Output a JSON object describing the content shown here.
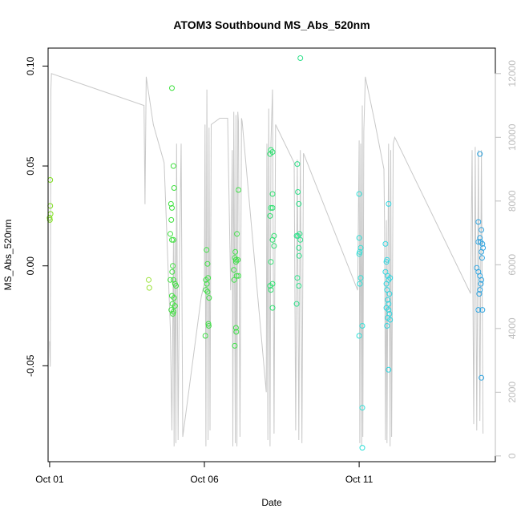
{
  "chart_data": {
    "type": "scatter",
    "title": "ATOM3 Southbound MS_Abs_520nm",
    "xlabel": "Date",
    "ylabel": "MS_Abs_520nm",
    "x_ticks": [
      {
        "day": 1,
        "label": "Oct 01"
      },
      {
        "day": 6,
        "label": "Oct 06"
      },
      {
        "day": 11,
        "label": "Oct 11"
      }
    ],
    "xlim": [
      0.95,
      15.4
    ],
    "ylim": [
      -0.098,
      0.109
    ],
    "y_ticks": [
      {
        "value": 0.1,
        "label": "0.10"
      },
      {
        "value": 0.05,
        "label": "0.05"
      },
      {
        "value": 0.0,
        "label": "0.00"
      },
      {
        "value": -0.05,
        "label": "-0.05"
      }
    ],
    "y2lim": [
      -180,
      12800
    ],
    "y2_ticks": [
      {
        "value": 0,
        "label": "0"
      },
      {
        "value": 2000,
        "label": "2000"
      },
      {
        "value": 4000,
        "label": "4000"
      },
      {
        "value": 6000,
        "label": "6000"
      },
      {
        "value": 8000,
        "label": "8000"
      },
      {
        "value": 10000,
        "label": "10000"
      },
      {
        "value": 12000,
        "label": "12000"
      }
    ],
    "grid": false,
    "legend": "none",
    "colors": {
      "secondary_line": "#c8c8c8",
      "axis": "#000000",
      "right_axis": "#bdbdbd"
    },
    "altitude_path": [
      [
        1.0,
        3600
      ],
      [
        1.02,
        2800
      ],
      [
        1.04,
        11500
      ],
      [
        1.06,
        12000
      ],
      [
        4.05,
        11000
      ],
      [
        4.08,
        7900
      ],
      [
        4.12,
        11900
      ],
      [
        4.35,
        10400
      ],
      [
        4.7,
        9200
      ],
      [
        4.9,
        4000
      ],
      [
        4.95,
        800
      ],
      [
        5.0,
        6700
      ],
      [
        5.02,
        300
      ],
      [
        5.05,
        6800
      ],
      [
        5.08,
        400
      ],
      [
        5.1,
        9800
      ],
      [
        5.15,
        500
      ],
      [
        5.2,
        6500
      ],
      [
        5.25,
        9800
      ],
      [
        5.3,
        600
      ],
      [
        5.9,
        5000
      ],
      [
        6.0,
        5400
      ],
      [
        6.02,
        10400
      ],
      [
        6.05,
        300
      ],
      [
        6.08,
        11500
      ],
      [
        6.12,
        500
      ],
      [
        6.15,
        10300
      ],
      [
        6.18,
        800
      ],
      [
        6.22,
        10400
      ],
      [
        6.5,
        10600
      ],
      [
        6.75,
        10600
      ],
      [
        6.85,
        5200
      ],
      [
        6.9,
        9600
      ],
      [
        6.92,
        300
      ],
      [
        6.95,
        10800
      ],
      [
        7.0,
        400
      ],
      [
        7.02,
        10700
      ],
      [
        7.05,
        300
      ],
      [
        7.08,
        10800
      ],
      [
        7.1,
        10500
      ],
      [
        7.15,
        600
      ],
      [
        7.2,
        10600
      ],
      [
        7.22,
        10500
      ],
      [
        8.0,
        2000
      ],
      [
        8.02,
        9800
      ],
      [
        8.05,
        500
      ],
      [
        8.08,
        10900
      ],
      [
        8.12,
        300
      ],
      [
        8.15,
        9800
      ],
      [
        8.2,
        11500
      ],
      [
        8.25,
        700
      ],
      [
        8.3,
        10400
      ],
      [
        8.9,
        9200
      ],
      [
        8.95,
        800
      ],
      [
        9.0,
        9300
      ],
      [
        9.05,
        500
      ],
      [
        9.1,
        9600
      ],
      [
        9.15,
        400
      ],
      [
        9.2,
        9500
      ],
      [
        10.95,
        5200
      ],
      [
        11.0,
        9900
      ],
      [
        11.02,
        400
      ],
      [
        11.05,
        9800
      ],
      [
        11.08,
        300
      ],
      [
        11.1,
        11000
      ],
      [
        11.12,
        600
      ],
      [
        11.15,
        10200
      ],
      [
        11.2,
        11900
      ],
      [
        11.5,
        10500
      ],
      [
        11.8,
        9000
      ],
      [
        11.82,
        7200
      ],
      [
        11.85,
        500
      ],
      [
        11.88,
        7400
      ],
      [
        11.9,
        400
      ],
      [
        11.95,
        9800
      ],
      [
        12.0,
        300
      ],
      [
        12.02,
        9600
      ],
      [
        12.05,
        600
      ],
      [
        12.1,
        9800
      ],
      [
        12.15,
        10000
      ],
      [
        14.6,
        5100
      ],
      [
        14.65,
        9600
      ],
      [
        14.7,
        1000
      ],
      [
        14.75,
        9700
      ],
      [
        14.8,
        800
      ],
      [
        14.85,
        9600
      ],
      [
        14.9,
        1100
      ],
      [
        14.95,
        9600
      ],
      [
        15.0,
        700
      ]
    ],
    "series": [
      {
        "color": "#7fdf1f",
        "points": [
          [
            1.02,
            0.043
          ],
          [
            1.02,
            0.03
          ],
          [
            1.03,
            0.026
          ],
          [
            1.0,
            0.024
          ],
          [
            1.01,
            0.023
          ]
        ]
      },
      {
        "color": "#9be23a",
        "points": [
          [
            4.2,
            -0.007
          ],
          [
            4.22,
            -0.011
          ]
        ]
      },
      {
        "color": "#3ee03e",
        "points": [
          [
            4.95,
            0.089
          ],
          [
            5.0,
            0.05
          ],
          [
            5.02,
            0.039
          ],
          [
            4.92,
            0.031
          ],
          [
            4.95,
            0.029
          ],
          [
            4.93,
            0.023
          ],
          [
            4.9,
            0.016
          ],
          [
            4.95,
            0.013
          ],
          [
            5.0,
            0.013
          ],
          [
            4.98,
            0.0
          ],
          [
            4.96,
            -0.003
          ],
          [
            5.0,
            -0.007
          ],
          [
            4.9,
            -0.007
          ],
          [
            5.05,
            -0.009
          ],
          [
            5.08,
            -0.01
          ],
          [
            4.95,
            -0.015
          ],
          [
            5.02,
            -0.016
          ],
          [
            4.97,
            -0.019
          ],
          [
            5.05,
            -0.02
          ],
          [
            4.93,
            -0.022
          ],
          [
            5.0,
            -0.023
          ],
          [
            4.98,
            -0.024
          ]
        ]
      },
      {
        "color": "#3ee045",
        "points": [
          [
            6.07,
            0.008
          ],
          [
            6.1,
            0.001
          ],
          [
            6.05,
            -0.007
          ],
          [
            6.12,
            -0.006
          ],
          [
            6.08,
            -0.009
          ],
          [
            6.1,
            -0.013
          ],
          [
            6.05,
            -0.012
          ],
          [
            6.15,
            -0.016
          ],
          [
            6.13,
            -0.029
          ],
          [
            6.14,
            -0.03
          ],
          [
            6.03,
            -0.035
          ]
        ]
      },
      {
        "color": "#3ee048",
        "points": [
          [
            7.1,
            0.038
          ],
          [
            7.05,
            0.016
          ],
          [
            7.0,
            0.007
          ],
          [
            6.98,
            0.004
          ],
          [
            7.02,
            0.003
          ],
          [
            7.08,
            0.003
          ],
          [
            7.02,
            0.002
          ],
          [
            6.95,
            -0.002
          ],
          [
            7.1,
            -0.005
          ],
          [
            7.04,
            -0.005
          ],
          [
            6.96,
            -0.007
          ],
          [
            7.02,
            -0.031
          ],
          [
            7.03,
            -0.033
          ],
          [
            6.98,
            -0.04
          ]
        ]
      },
      {
        "color": "#2ee070",
        "points": [
          [
            8.15,
            0.058
          ],
          [
            8.2,
            0.057
          ],
          [
            8.12,
            0.056
          ],
          [
            8.2,
            0.036
          ],
          [
            8.15,
            0.029
          ],
          [
            8.2,
            0.029
          ],
          [
            8.12,
            0.025
          ],
          [
            8.25,
            0.015
          ],
          [
            8.2,
            0.013
          ],
          [
            8.25,
            0.01
          ],
          [
            8.15,
            0.002
          ],
          [
            8.2,
            -0.009
          ],
          [
            8.12,
            -0.01
          ],
          [
            8.15,
            -0.012
          ],
          [
            8.2,
            -0.021
          ]
        ]
      },
      {
        "color": "#2ee08a",
        "points": [
          [
            9.1,
            0.104
          ],
          [
            9.0,
            0.051
          ],
          [
            9.02,
            0.037
          ],
          [
            9.05,
            0.031
          ],
          [
            9.08,
            0.016
          ],
          [
            9.02,
            0.015
          ],
          [
            9.1,
            0.013
          ],
          [
            8.98,
            0.015
          ],
          [
            9.05,
            0.009
          ],
          [
            9.06,
            0.005
          ],
          [
            9.0,
            -0.006
          ],
          [
            9.05,
            -0.01
          ],
          [
            8.98,
            -0.019
          ]
        ]
      },
      {
        "color": "#2ee0d8",
        "points": [
          [
            11.0,
            0.036
          ],
          [
            11.0,
            0.014
          ],
          [
            11.05,
            0.009
          ],
          [
            11.02,
            0.007
          ],
          [
            11.0,
            0.006
          ],
          [
            11.05,
            -0.006
          ],
          [
            11.02,
            -0.009
          ],
          [
            11.1,
            -0.03
          ],
          [
            11.0,
            -0.035
          ],
          [
            11.1,
            -0.071
          ],
          [
            11.1,
            -0.091
          ]
        ]
      },
      {
        "color": "#2ed6e0",
        "points": [
          [
            11.85,
            0.011
          ],
          [
            11.9,
            0.003
          ],
          [
            11.88,
            0.002
          ],
          [
            11.85,
            -0.003
          ],
          [
            11.92,
            -0.005
          ],
          [
            12.0,
            -0.006
          ],
          [
            11.95,
            -0.007
          ],
          [
            11.88,
            -0.009
          ],
          [
            11.9,
            -0.012
          ],
          [
            11.98,
            -0.014
          ],
          [
            11.92,
            -0.017
          ],
          [
            11.95,
            -0.019
          ],
          [
            11.88,
            -0.021
          ],
          [
            11.95,
            -0.022
          ],
          [
            11.98,
            -0.024
          ],
          [
            11.92,
            -0.026
          ],
          [
            12.0,
            -0.027
          ],
          [
            11.9,
            -0.03
          ],
          [
            11.95,
            -0.052
          ],
          [
            11.95,
            0.031
          ]
        ]
      },
      {
        "color": "#2ea4e0",
        "points": [
          [
            14.9,
            0.056
          ],
          [
            14.85,
            0.022
          ],
          [
            14.95,
            0.018
          ],
          [
            14.9,
            0.014
          ],
          [
            14.85,
            0.012
          ],
          [
            14.92,
            0.012
          ],
          [
            14.98,
            0.011
          ],
          [
            15.0,
            0.009
          ],
          [
            14.95,
            0.007
          ],
          [
            14.97,
            0.004
          ],
          [
            14.8,
            -0.001
          ],
          [
            14.85,
            -0.003
          ],
          [
            14.9,
            -0.005
          ],
          [
            14.95,
            -0.007
          ],
          [
            14.93,
            -0.009
          ],
          [
            14.9,
            -0.012
          ],
          [
            14.88,
            -0.014
          ],
          [
            14.85,
            -0.022
          ],
          [
            14.98,
            -0.022
          ],
          [
            14.95,
            -0.056
          ]
        ]
      }
    ]
  }
}
